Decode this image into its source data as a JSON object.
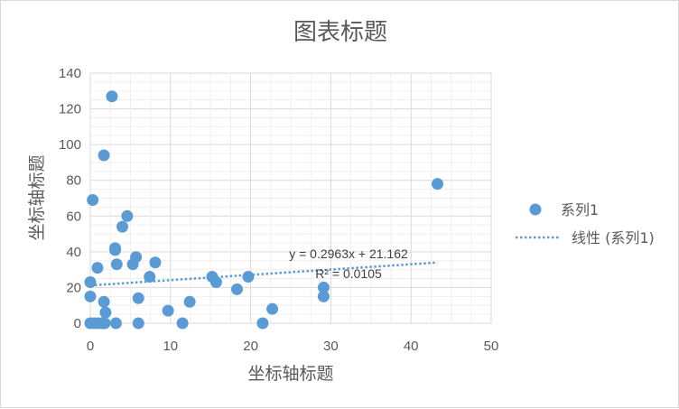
{
  "chart_data": {
    "type": "scatter",
    "title": "图表标题",
    "xlabel": "坐标轴标题",
    "ylabel": "坐标轴标题",
    "xlim": [
      0,
      50
    ],
    "ylim": [
      0,
      140
    ],
    "x_ticks": [
      0,
      10,
      20,
      30,
      40,
      50
    ],
    "y_ticks": [
      0,
      20,
      40,
      60,
      80,
      100,
      120,
      140
    ],
    "grid": true,
    "legend_position": "right",
    "marker_color": "#5b9bd5",
    "trendline_color": "#5b9bd5",
    "series": [
      {
        "name": "系列1",
        "points": [
          [
            0,
            0
          ],
          [
            0.5,
            0
          ],
          [
            1,
            0
          ],
          [
            1.5,
            0
          ],
          [
            1.8,
            0
          ],
          [
            3.2,
            0
          ],
          [
            6,
            0
          ],
          [
            11.5,
            0
          ],
          [
            21.5,
            0
          ],
          [
            0,
            15
          ],
          [
            0,
            23
          ],
          [
            0.3,
            69
          ],
          [
            0.9,
            31
          ],
          [
            1.7,
            94
          ],
          [
            1.7,
            12
          ],
          [
            1.9,
            6
          ],
          [
            2.7,
            127
          ],
          [
            3.1,
            42
          ],
          [
            3.1,
            41
          ],
          [
            3.3,
            33
          ],
          [
            4.0,
            54
          ],
          [
            4.6,
            60
          ],
          [
            5.3,
            33
          ],
          [
            5.7,
            37
          ],
          [
            6.0,
            14
          ],
          [
            7.4,
            26
          ],
          [
            8.1,
            34
          ],
          [
            9.7,
            7
          ],
          [
            12.4,
            12
          ],
          [
            15.2,
            26
          ],
          [
            15.7,
            23
          ],
          [
            18.3,
            19
          ],
          [
            19.7,
            26
          ],
          [
            22.7,
            8
          ],
          [
            29.1,
            20
          ],
          [
            29.1,
            15
          ],
          [
            43.3,
            78
          ]
        ]
      }
    ],
    "trendline": {
      "name": "线性 (系列1)",
      "type": "linear",
      "slope": 0.2963,
      "intercept": 21.162,
      "x_range": [
        0,
        43.3
      ],
      "equation_label": "y = 0.2963x + 21.162",
      "r2_label": "R² = 0.0105"
    }
  }
}
